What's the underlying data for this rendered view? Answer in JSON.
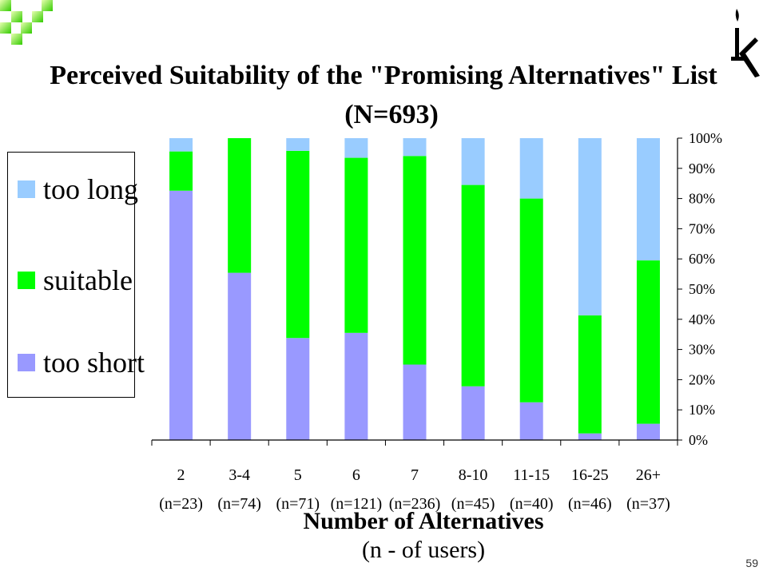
{
  "slide": {
    "title_line1": "Perceived Suitability of the \"Promising Alternatives\" List",
    "title_line2": "(N=693)",
    "page_number": "59"
  },
  "legend": {
    "items": [
      {
        "label": "too long",
        "color": "#99ccff"
      },
      {
        "label": "suitable",
        "color": "#00ff00"
      },
      {
        "label": "too short",
        "color": "#9999ff"
      }
    ]
  },
  "axis": {
    "x_title": "Number of Alternatives",
    "x_subtitle": "(n - of users)"
  },
  "colors": {
    "too_short": "#9999ff",
    "suitable": "#00ff00",
    "too_long": "#99ccff",
    "axis": "#000000"
  },
  "chart_data": {
    "type": "bar",
    "stacked": true,
    "title": "Perceived Suitability of the \"Promising Alternatives\" List (N=693)",
    "xlabel": "Number of Alternatives (n - of users)",
    "ylabel": "",
    "ylim": [
      0,
      100
    ],
    "y_ticks": [
      "0%",
      "10%",
      "20%",
      "30%",
      "40%",
      "50%",
      "60%",
      "70%",
      "80%",
      "90%",
      "100%"
    ],
    "y_axis_position": "right",
    "legend_position": "left",
    "categories": [
      "2",
      "3-4",
      "5",
      "6",
      "7",
      "8-10",
      "11-15",
      "16-25",
      "26+"
    ],
    "category_n": [
      "(n=23)",
      "(n=74)",
      "(n=71)",
      "(n=121)",
      "(n=236)",
      "(n=45)",
      "(n=40)",
      "(n=46)",
      "(n=37)"
    ],
    "series": [
      {
        "name": "too short",
        "color": "#9999ff",
        "values": [
          82.6,
          55.4,
          33.8,
          35.5,
          25.0,
          17.8,
          12.5,
          2.2,
          5.4
        ]
      },
      {
        "name": "suitable",
        "color": "#00ff00",
        "values": [
          13.0,
          44.6,
          62.0,
          58.0,
          69.1,
          66.7,
          67.5,
          39.1,
          54.1
        ]
      },
      {
        "name": "too long",
        "color": "#99ccff",
        "values": [
          4.4,
          0.0,
          4.2,
          6.5,
          5.9,
          15.5,
          20.0,
          58.7,
          40.5
        ]
      }
    ]
  }
}
